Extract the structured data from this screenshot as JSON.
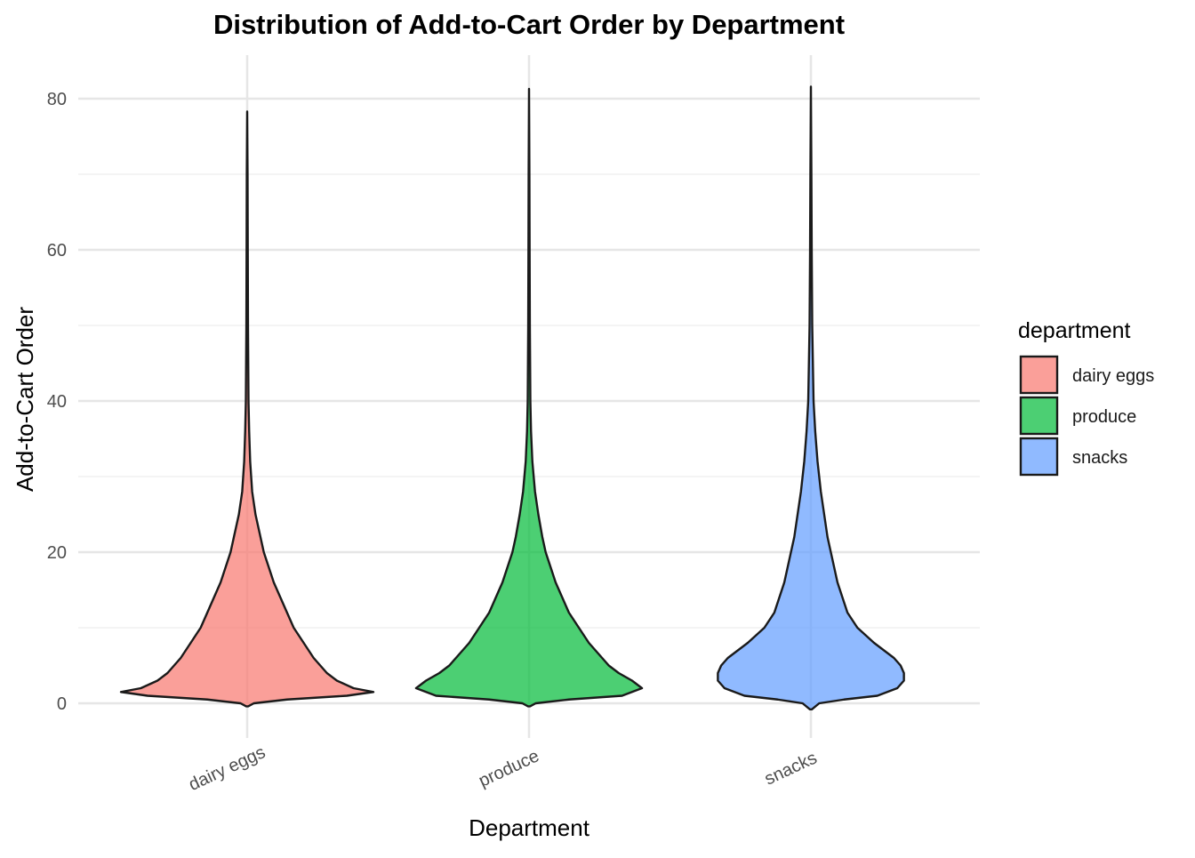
{
  "chart_data": {
    "type": "violin",
    "title": "Distribution of Add-to-Cart Order by Department",
    "xlabel": "Department",
    "ylabel": "Add-to-Cart Order",
    "categories": [
      "dairy eggs",
      "produce",
      "snacks"
    ],
    "ylim": [
      -5.5,
      86
    ],
    "yticks": [
      0,
      20,
      40,
      60,
      80
    ],
    "grid": true,
    "legend": {
      "title": "department",
      "position": "right",
      "entries": [
        "dairy eggs",
        "produce",
        "snacks"
      ]
    },
    "colors": {
      "dairy eggs": "#F8766D",
      "produce": "#00BA38",
      "snacks": "#619CFF"
    },
    "series": [
      {
        "name": "dairy eggs",
        "min": -0.4,
        "max": 78.3,
        "density": [
          [
            -0.4,
            0.3
          ],
          [
            0,
            2
          ],
          [
            0.5,
            12
          ],
          [
            1,
            30
          ],
          [
            1.5,
            38
          ],
          [
            2,
            32
          ],
          [
            3,
            27
          ],
          [
            4,
            24
          ],
          [
            5,
            22
          ],
          [
            6,
            20
          ],
          [
            8,
            17
          ],
          [
            10,
            14
          ],
          [
            12,
            12
          ],
          [
            14,
            10
          ],
          [
            16,
            8
          ],
          [
            18,
            6.5
          ],
          [
            20,
            5
          ],
          [
            22,
            4
          ],
          [
            25,
            2.5
          ],
          [
            28,
            1.5
          ],
          [
            32,
            0.9
          ],
          [
            36,
            0.6
          ],
          [
            40,
            0.4
          ],
          [
            50,
            0.25
          ],
          [
            60,
            0.18
          ],
          [
            70,
            0.12
          ],
          [
            78.3,
            0
          ]
        ]
      },
      {
        "name": "produce",
        "min": -0.4,
        "max": 81.3,
        "density": [
          [
            -0.4,
            0.3
          ],
          [
            0,
            2
          ],
          [
            0.5,
            12
          ],
          [
            1,
            28
          ],
          [
            2,
            34
          ],
          [
            3,
            31
          ],
          [
            4,
            27
          ],
          [
            5,
            24
          ],
          [
            6,
            22
          ],
          [
            8,
            18
          ],
          [
            10,
            15
          ],
          [
            12,
            12
          ],
          [
            14,
            10
          ],
          [
            16,
            8
          ],
          [
            18,
            6.5
          ],
          [
            20,
            5
          ],
          [
            22,
            4
          ],
          [
            25,
            2.8
          ],
          [
            28,
            1.8
          ],
          [
            32,
            1
          ],
          [
            36,
            0.6
          ],
          [
            40,
            0.4
          ],
          [
            50,
            0.25
          ],
          [
            60,
            0.18
          ],
          [
            70,
            0.12
          ],
          [
            81.3,
            0
          ]
        ]
      },
      {
        "name": "snacks",
        "min": -0.8,
        "max": 81.6,
        "density": [
          [
            -0.8,
            0.3
          ],
          [
            0,
            2.5
          ],
          [
            0.5,
            10
          ],
          [
            1,
            20
          ],
          [
            2,
            26
          ],
          [
            3,
            28
          ],
          [
            4,
            28
          ],
          [
            5,
            27
          ],
          [
            6,
            25
          ],
          [
            8,
            19
          ],
          [
            10,
            14
          ],
          [
            12,
            11
          ],
          [
            14,
            9.5
          ],
          [
            16,
            8
          ],
          [
            18,
            7
          ],
          [
            20,
            6
          ],
          [
            22,
            5
          ],
          [
            25,
            4
          ],
          [
            28,
            3
          ],
          [
            32,
            2
          ],
          [
            36,
            1.3
          ],
          [
            40,
            0.8
          ],
          [
            50,
            0.4
          ],
          [
            60,
            0.25
          ],
          [
            70,
            0.15
          ],
          [
            81.6,
            0
          ]
        ]
      }
    ]
  }
}
